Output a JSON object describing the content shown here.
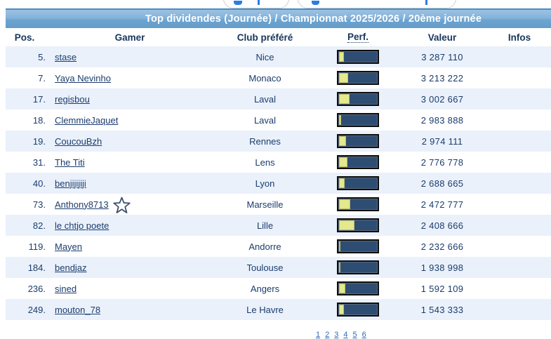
{
  "toolbar": {
    "buttons": [
      {
        "name": "left-partial-button"
      },
      {
        "name": "right-partial-button"
      }
    ]
  },
  "title": "Top dividendes (Journée) / Championnat 2025/2026 / 20ème journée",
  "columns": {
    "pos": "Pos.",
    "gamer": "Gamer",
    "club": "Club préféré",
    "perf": "Perf.",
    "valeur": "Valeur",
    "infos": "Infos"
  },
  "colors": {
    "title_bar_top": "#9cc2e3",
    "title_bar_bottom": "#649bca",
    "row_alt": "#eaf1fb",
    "text_navy": "#1b3c6d",
    "bar_track": "#2e4d73",
    "bar_fill": "#e3e98c",
    "link_blue": "#2b6cb5"
  },
  "rows": [
    {
      "pos": "5.",
      "gamer": "stase",
      "club": "Nice",
      "perf_pct": 12,
      "valeur": "3 287 110",
      "starred": false
    },
    {
      "pos": "7.",
      "gamer": "Yaya Nevinho",
      "club": "Monaco",
      "perf_pct": 23,
      "valeur": "3 213 222",
      "starred": false
    },
    {
      "pos": "17.",
      "gamer": "regisbou",
      "club": "Laval",
      "perf_pct": 27,
      "valeur": "3 002 667",
      "starred": false
    },
    {
      "pos": "18.",
      "gamer": "ClemmieJaquet",
      "club": "Laval",
      "perf_pct": 6,
      "valeur": "2 983 888",
      "starred": false
    },
    {
      "pos": "19.",
      "gamer": "CoucouBzh",
      "club": "Rennes",
      "perf_pct": 17,
      "valeur": "2 974 111",
      "starred": false
    },
    {
      "pos": "31.",
      "gamer": "The Titi",
      "club": "Lens",
      "perf_pct": 22,
      "valeur": "2 776 778",
      "starred": false
    },
    {
      "pos": "40.",
      "gamer": "benjijijiji",
      "club": "Lyon",
      "perf_pct": 14,
      "valeur": "2 688 665",
      "starred": false
    },
    {
      "pos": "73.",
      "gamer": "Anthony8713",
      "club": "Marseille",
      "perf_pct": 29,
      "valeur": "2 472 777",
      "starred": true
    },
    {
      "pos": "82.",
      "gamer": "le chtjo poete",
      "club": "Lille",
      "perf_pct": 40,
      "valeur": "2 408 666",
      "starred": false
    },
    {
      "pos": "119.",
      "gamer": "Mayen",
      "club": "Andorre",
      "perf_pct": 3,
      "valeur": "2 232 666",
      "starred": false
    },
    {
      "pos": "184.",
      "gamer": "bendjaz",
      "club": "Toulouse",
      "perf_pct": 3,
      "valeur": "1 938 998",
      "starred": false
    },
    {
      "pos": "236.",
      "gamer": "sined",
      "club": "Angers",
      "perf_pct": 16,
      "valeur": "1 592 109",
      "starred": false
    },
    {
      "pos": "249.",
      "gamer": "mouton_78",
      "club": "Le Havre",
      "perf_pct": 13,
      "valeur": "1 543 333",
      "starred": false
    }
  ],
  "pagination": {
    "items": [
      "1",
      "2",
      "3",
      "4",
      "5",
      "6"
    ]
  }
}
